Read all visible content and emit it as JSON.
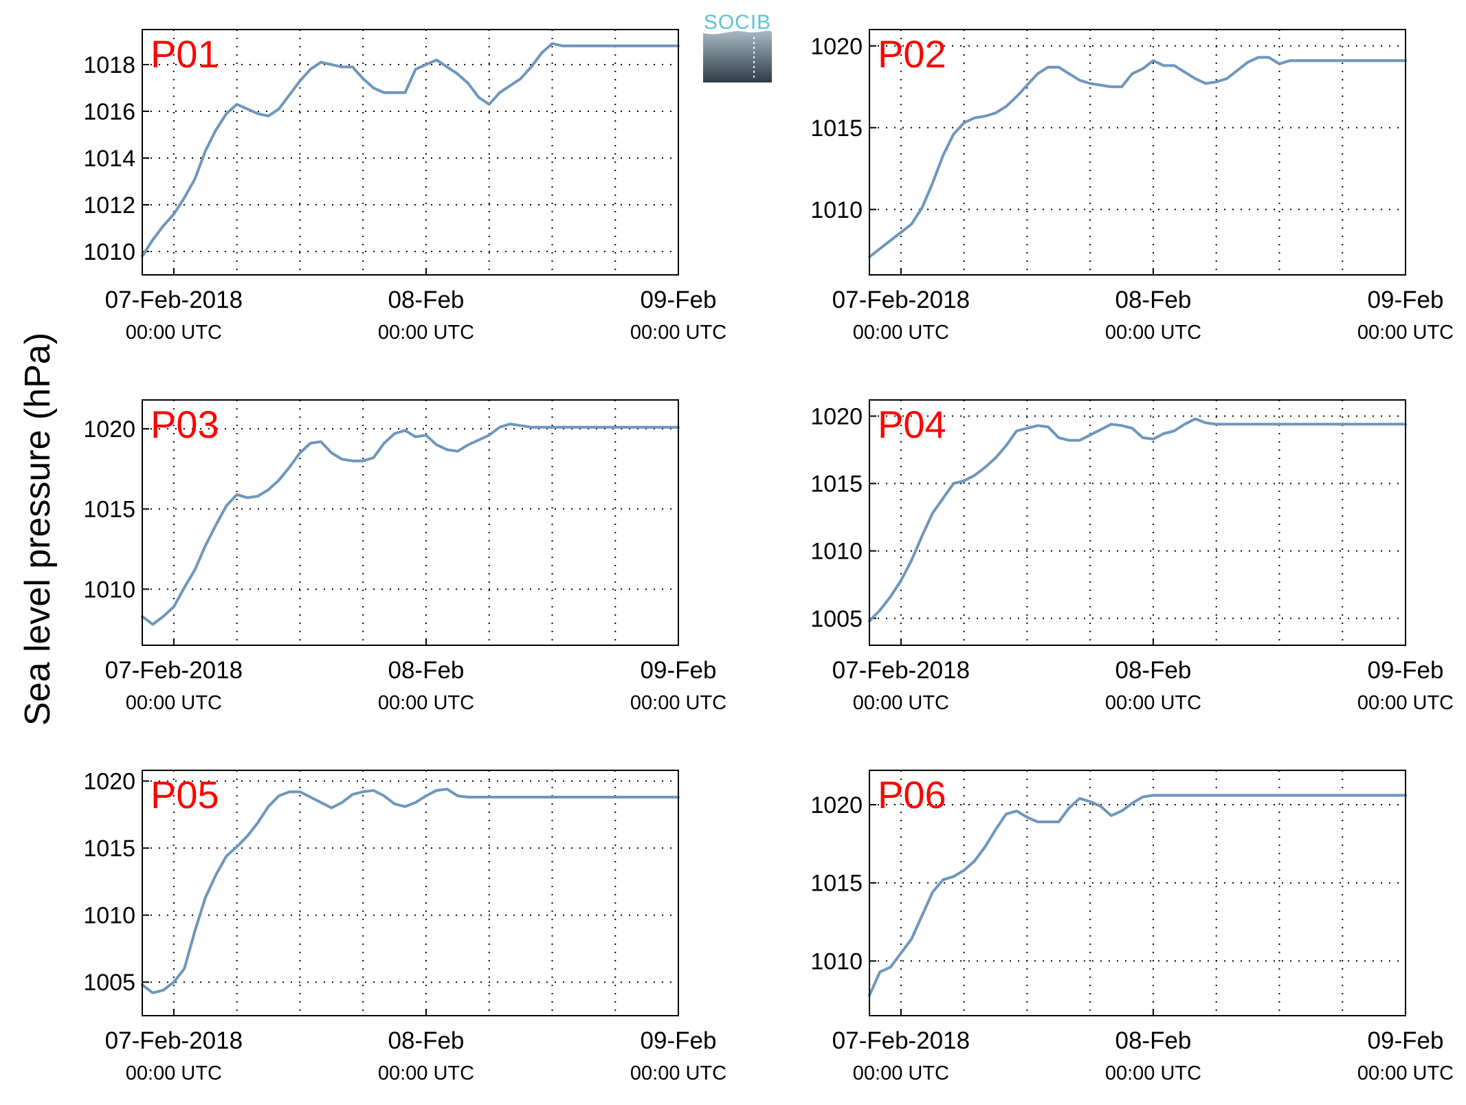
{
  "figure": {
    "ylabel": "Sea level pressure (hPa)",
    "logo_text": "SOCIB",
    "x_tick_labels": [
      {
        "date": "07-Feb-2018",
        "time": "00:00 UTC"
      },
      {
        "date": "08-Feb",
        "time": "00:00 UTC"
      },
      {
        "date": "09-Feb",
        "time": "00:00 UTC"
      }
    ]
  },
  "colors": {
    "line": "#6e96bc",
    "panel_label": "#ff0000",
    "axes": "#000000",
    "grid": "#000000",
    "logo_text": "#5ec3d6",
    "logo_top": "#a9b9c4",
    "logo_bottom": "#2c3b45"
  },
  "chart_data": [
    {
      "type": "line",
      "label": "P01",
      "grid": true,
      "xlabel": "",
      "ylabel": "Sea level pressure (hPa)",
      "x_unit": "hours since 07-Feb-2018 00:00 UTC",
      "xlim": [
        -3,
        48
      ],
      "ylim": [
        1009,
        1019.5
      ],
      "yticks": [
        1010,
        1012,
        1014,
        1016,
        1018
      ],
      "x": [
        -3,
        -2,
        -1,
        0,
        1,
        2,
        3,
        4,
        5,
        6,
        7,
        8,
        9,
        10,
        11,
        12,
        13,
        14,
        15,
        16,
        17,
        18,
        19,
        20,
        21,
        22,
        23,
        24,
        25,
        26,
        27,
        28,
        29,
        30,
        31,
        32,
        33,
        34,
        35,
        36,
        37,
        38,
        39,
        40,
        41,
        42,
        43,
        44,
        45,
        46,
        47,
        48
      ],
      "y": [
        1009.8,
        1010.5,
        1011.1,
        1011.6,
        1012.3,
        1013.1,
        1014.3,
        1015.2,
        1015.9,
        1016.3,
        1016.1,
        1015.9,
        1015.8,
        1016.1,
        1016.7,
        1017.3,
        1017.8,
        1018.1,
        1018.0,
        1017.9,
        1017.9,
        1017.4,
        1017.0,
        1016.8,
        1016.8,
        1016.8,
        1017.8,
        1018.0,
        1018.2,
        1017.9,
        1017.6,
        1017.2,
        1016.6,
        1016.3,
        1016.8,
        1017.1,
        1017.4,
        1017.9,
        1018.5,
        1018.9,
        1018.8,
        1018.8,
        1018.8,
        1018.8,
        1018.8,
        1018.8,
        1018.8,
        1018.8,
        1018.8,
        1018.8,
        1018.8,
        1018.8
      ]
    },
    {
      "type": "line",
      "label": "P02",
      "grid": true,
      "xlabel": "",
      "ylabel": "Sea level pressure (hPa)",
      "x_unit": "hours since 07-Feb-2018 00:00 UTC",
      "xlim": [
        -3,
        48
      ],
      "ylim": [
        1006,
        1021
      ],
      "yticks": [
        1010,
        1015,
        1020
      ],
      "x": [
        -3,
        -2,
        -1,
        0,
        1,
        2,
        3,
        4,
        5,
        6,
        7,
        8,
        9,
        10,
        11,
        12,
        13,
        14,
        15,
        16,
        17,
        18,
        19,
        20,
        21,
        22,
        23,
        24,
        25,
        26,
        27,
        28,
        29,
        30,
        31,
        32,
        33,
        34,
        35,
        36,
        37,
        38,
        39,
        40,
        41,
        42,
        43,
        44,
        45,
        46,
        47,
        48
      ],
      "y": [
        1007.1,
        1007.6,
        1008.1,
        1008.6,
        1009.1,
        1010.1,
        1011.6,
        1013.3,
        1014.6,
        1015.3,
        1015.6,
        1015.7,
        1015.9,
        1016.3,
        1016.9,
        1017.6,
        1018.3,
        1018.7,
        1018.7,
        1018.3,
        1017.9,
        1017.7,
        1017.6,
        1017.5,
        1017.5,
        1018.3,
        1018.6,
        1019.1,
        1018.8,
        1018.8,
        1018.4,
        1018.0,
        1017.7,
        1017.8,
        1018.0,
        1018.5,
        1019.0,
        1019.3,
        1019.3,
        1018.9,
        1019.1,
        1019.1,
        1019.1,
        1019.1,
        1019.1,
        1019.1,
        1019.1,
        1019.1,
        1019.1,
        1019.1,
        1019.1,
        1019.1
      ]
    },
    {
      "type": "line",
      "label": "P03",
      "grid": true,
      "xlabel": "",
      "ylabel": "Sea level pressure (hPa)",
      "x_unit": "hours since 07-Feb-2018 00:00 UTC",
      "xlim": [
        -3,
        48
      ],
      "ylim": [
        1006.5,
        1021.8
      ],
      "yticks": [
        1010,
        1015,
        1020
      ],
      "x": [
        -3,
        -2,
        -1,
        0,
        1,
        2,
        3,
        4,
        5,
        6,
        7,
        8,
        9,
        10,
        11,
        12,
        13,
        14,
        15,
        16,
        17,
        18,
        19,
        20,
        21,
        22,
        23,
        24,
        25,
        26,
        27,
        28,
        29,
        30,
        31,
        32,
        33,
        34,
        35,
        36,
        37,
        38,
        39,
        40,
        41,
        42,
        43,
        44,
        45,
        46,
        47,
        48
      ],
      "y": [
        1008.3,
        1007.8,
        1008.3,
        1008.9,
        1010.1,
        1011.2,
        1012.7,
        1014.0,
        1015.2,
        1015.9,
        1015.7,
        1015.8,
        1016.2,
        1016.8,
        1017.6,
        1018.5,
        1019.1,
        1019.2,
        1018.5,
        1018.1,
        1018.0,
        1018.0,
        1018.2,
        1019.1,
        1019.7,
        1019.9,
        1019.5,
        1019.6,
        1019.0,
        1018.7,
        1018.6,
        1019.0,
        1019.3,
        1019.6,
        1020.1,
        1020.3,
        1020.2,
        1020.1,
        1020.1,
        1020.1,
        1020.1,
        1020.1,
        1020.1,
        1020.1,
        1020.1,
        1020.1,
        1020.1,
        1020.1,
        1020.1,
        1020.1,
        1020.1,
        1020.1
      ]
    },
    {
      "type": "line",
      "label": "P04",
      "grid": true,
      "xlabel": "",
      "ylabel": "Sea level pressure (hPa)",
      "x_unit": "hours since 07-Feb-2018 00:00 UTC",
      "xlim": [
        -3,
        48
      ],
      "ylim": [
        1003,
        1021.2
      ],
      "yticks": [
        1005,
        1010,
        1015,
        1020
      ],
      "x": [
        -3,
        -2,
        -1,
        0,
        1,
        2,
        3,
        4,
        5,
        6,
        7,
        8,
        9,
        10,
        11,
        12,
        13,
        14,
        15,
        16,
        17,
        18,
        19,
        20,
        21,
        22,
        23,
        24,
        25,
        26,
        27,
        28,
        29,
        30,
        31,
        32,
        33,
        34,
        35,
        36,
        37,
        38,
        39,
        40,
        41,
        42,
        43,
        44,
        45,
        46,
        47,
        48
      ],
      "y": [
        1004.8,
        1005.6,
        1006.6,
        1007.8,
        1009.3,
        1011.1,
        1012.8,
        1013.9,
        1015.0,
        1015.2,
        1015.6,
        1016.2,
        1016.9,
        1017.8,
        1018.9,
        1019.1,
        1019.3,
        1019.2,
        1018.4,
        1018.2,
        1018.2,
        1018.6,
        1019.0,
        1019.4,
        1019.3,
        1019.1,
        1018.4,
        1018.3,
        1018.7,
        1018.9,
        1019.4,
        1019.8,
        1019.5,
        1019.4,
        1019.4,
        1019.4,
        1019.4,
        1019.4,
        1019.4,
        1019.4,
        1019.4,
        1019.4,
        1019.4,
        1019.4,
        1019.4,
        1019.4,
        1019.4,
        1019.4,
        1019.4,
        1019.4,
        1019.4,
        1019.4
      ]
    },
    {
      "type": "line",
      "label": "P05",
      "grid": true,
      "xlabel": "",
      "ylabel": "Sea level pressure (hPa)",
      "x_unit": "hours since 07-Feb-2018 00:00 UTC",
      "xlim": [
        -3,
        48
      ],
      "ylim": [
        1002.5,
        1020.8
      ],
      "yticks": [
        1005,
        1010,
        1015,
        1020
      ],
      "x": [
        -3,
        -2,
        -1,
        0,
        1,
        2,
        3,
        4,
        5,
        6,
        7,
        8,
        9,
        10,
        11,
        12,
        13,
        14,
        15,
        16,
        17,
        18,
        19,
        20,
        21,
        22,
        23,
        24,
        25,
        26,
        27,
        28,
        29,
        30,
        31,
        32,
        33,
        34,
        35,
        36,
        37,
        38,
        39,
        40,
        41,
        42,
        43,
        44,
        45,
        46,
        47,
        48
      ],
      "y": [
        1004.8,
        1004.2,
        1004.4,
        1005.0,
        1006.0,
        1008.8,
        1011.3,
        1013.0,
        1014.4,
        1015.1,
        1015.9,
        1016.9,
        1018.1,
        1018.9,
        1019.2,
        1019.2,
        1018.8,
        1018.4,
        1018.0,
        1018.4,
        1019.0,
        1019.2,
        1019.3,
        1018.9,
        1018.3,
        1018.1,
        1018.4,
        1018.9,
        1019.3,
        1019.4,
        1018.9,
        1018.8,
        1018.8,
        1018.8,
        1018.8,
        1018.8,
        1018.8,
        1018.8,
        1018.8,
        1018.8,
        1018.8,
        1018.8,
        1018.8,
        1018.8,
        1018.8,
        1018.8,
        1018.8,
        1018.8,
        1018.8,
        1018.8,
        1018.8,
        1018.8
      ]
    },
    {
      "type": "line",
      "label": "P06",
      "grid": true,
      "xlabel": "",
      "ylabel": "Sea level pressure (hPa)",
      "x_unit": "hours since 07-Feb-2018 00:00 UTC",
      "xlim": [
        -3,
        48
      ],
      "ylim": [
        1006.5,
        1022.2
      ],
      "yticks": [
        1010,
        1015,
        1020
      ],
      "x": [
        -3,
        -2,
        -1,
        0,
        1,
        2,
        3,
        4,
        5,
        6,
        7,
        8,
        9,
        10,
        11,
        12,
        13,
        14,
        15,
        16,
        17,
        18,
        19,
        20,
        21,
        22,
        23,
        24,
        25,
        26,
        27,
        28,
        29,
        30,
        31,
        32,
        33,
        34,
        35,
        36,
        37,
        38,
        39,
        40,
        41,
        42,
        43,
        44,
        45,
        46,
        47,
        48
      ],
      "y": [
        1007.8,
        1009.3,
        1009.6,
        1010.5,
        1011.4,
        1012.9,
        1014.4,
        1015.2,
        1015.4,
        1015.8,
        1016.4,
        1017.3,
        1018.4,
        1019.4,
        1019.6,
        1019.2,
        1018.9,
        1018.9,
        1018.9,
        1019.8,
        1020.4,
        1020.2,
        1019.9,
        1019.3,
        1019.6,
        1020.1,
        1020.5,
        1020.6,
        1020.6,
        1020.6,
        1020.6,
        1020.6,
        1020.6,
        1020.6,
        1020.6,
        1020.6,
        1020.6,
        1020.6,
        1020.6,
        1020.6,
        1020.6,
        1020.6,
        1020.6,
        1020.6,
        1020.6,
        1020.6,
        1020.6,
        1020.6,
        1020.6,
        1020.6,
        1020.6,
        1020.6
      ]
    }
  ]
}
